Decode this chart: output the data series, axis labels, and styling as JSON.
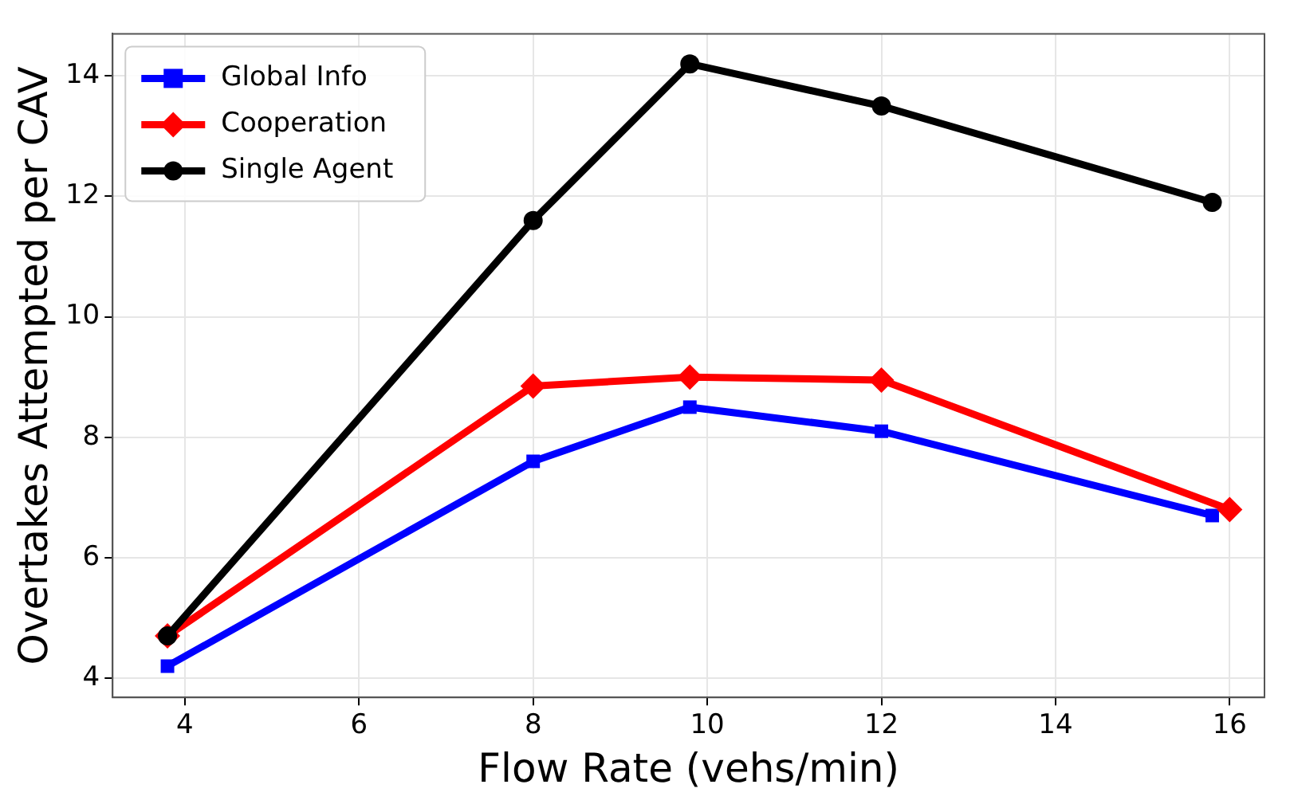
{
  "chart_data": {
    "type": "line",
    "xlabel": "Flow Rate (vehs/min)",
    "ylabel": "Overtakes Attempted per CAV",
    "xlim": [
      3.17,
      16.4
    ],
    "xticks": [
      4,
      6,
      8,
      10,
      12,
      14,
      16
    ],
    "ylim": [
      3.68,
      14.7
    ],
    "yticks": [
      4,
      6,
      8,
      10,
      12,
      14
    ],
    "grid": true,
    "legend": "top left",
    "line_style": "solid",
    "series": [
      {
        "name": "Global Info",
        "color": "#0000ff",
        "marker": "square",
        "x": [
          3.8,
          8,
          9.8,
          12,
          15.8
        ],
        "values": [
          4.2,
          7.6,
          8.5,
          8.1,
          6.7
        ]
      },
      {
        "name": "Cooperation",
        "color": "#ff0000",
        "marker": "diamond",
        "x": [
          3.8,
          8,
          9.8,
          12,
          16
        ],
        "values": [
          4.7,
          8.85,
          9.0,
          8.95,
          6.8
        ]
      },
      {
        "name": "Single Agent",
        "color": "#000000",
        "marker": "circle",
        "x": [
          3.8,
          8,
          9.8,
          12,
          15.8
        ],
        "values": [
          4.7,
          11.6,
          14.2,
          13.5,
          11.9
        ]
      }
    ]
  }
}
